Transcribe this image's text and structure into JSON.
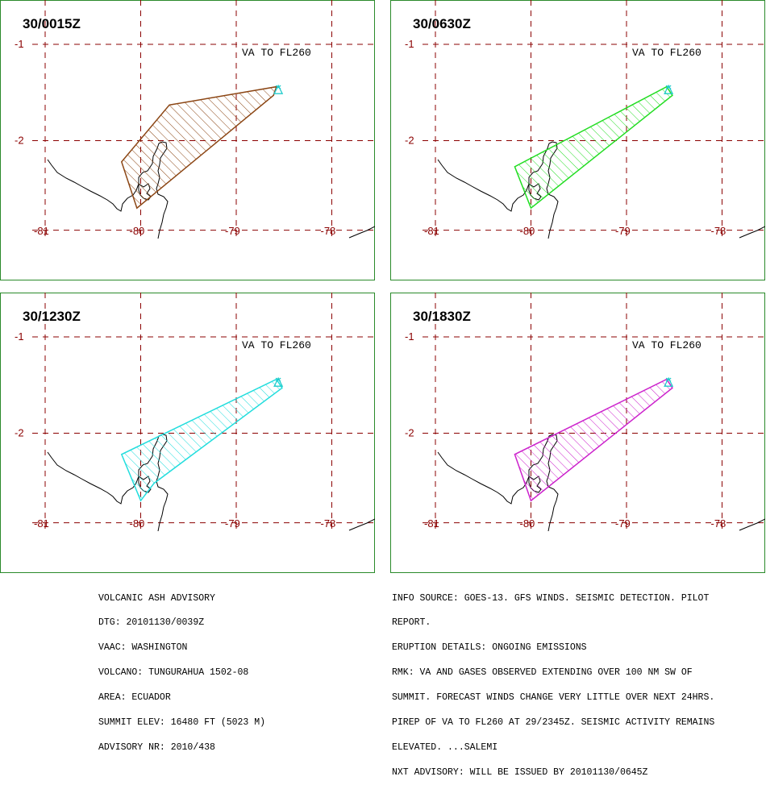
{
  "panels": [
    {
      "time": "30/0015Z",
      "label": "VA TO FL260",
      "color": "#8B4513",
      "polygon": [
        [
          -79.7,
          -1.63
        ],
        [
          -78.58,
          -1.44
        ],
        [
          -78.61,
          -1.53
        ],
        [
          -80.04,
          -2.7
        ],
        [
          -80.2,
          -2.22
        ]
      ]
    },
    {
      "time": "30/0630Z",
      "label": "VA TO FL260",
      "color": "#22dd22",
      "polygon": [
        [
          -78.58,
          -1.44
        ],
        [
          -78.52,
          -1.53
        ],
        [
          -80.0,
          -2.7
        ],
        [
          -80.17,
          -2.27
        ]
      ]
    },
    {
      "time": "30/1230Z",
      "label": "VA TO FL260",
      "color": "#22dddd",
      "polygon": [
        [
          -78.58,
          -1.44
        ],
        [
          -78.52,
          -1.53
        ],
        [
          -79.86,
          -2.52
        ],
        [
          -80.0,
          -2.7
        ],
        [
          -80.2,
          -2.22
        ]
      ]
    },
    {
      "time": "30/1830Z",
      "label": "VA TO FL260",
      "color": "#cc22cc",
      "polygon": [
        [
          -78.58,
          -1.44
        ],
        [
          -78.52,
          -1.53
        ],
        [
          -80.0,
          -2.7
        ],
        [
          -80.17,
          -2.22
        ]
      ]
    }
  ],
  "axes": {
    "lon_ticks": [
      "-81",
      "-80",
      "-79",
      "-78"
    ],
    "lat_ticks": [
      "-1",
      "-2"
    ],
    "grid_color": "#8b0000"
  },
  "advisory_left": [
    "VOLCANIC ASH ADVISORY",
    "DTG: 20101130/0039Z",
    "VAAC: WASHINGTON",
    "VOLCANO: TUNGURAHUA 1502-08",
    "AREA: ECUADOR",
    "SUMMIT ELEV: 16480 FT (5023 M)",
    "ADVISORY NR: 2010/438"
  ],
  "advisory_right": [
    "INFO SOURCE: GOES-13. GFS WINDS. SEISMIC DETECTION. PILOT",
    "REPORT.",
    "ERUPTION DETAILS: ONGOING EMISSIONS",
    "RMK: VA AND GASES OBSERVED EXTENDING OVER 100 NM SW OF",
    "SUMMIT. FORECAST WINDS CHANGE VERY LITTLE OVER NEXT 24HRS.",
    "PIREP OF VA TO FL260 AT 29/2345Z. SEISMIC ACTIVITY REMAINS",
    "ELEVATED. ...SALEMI",
    "NXT ADVISORY: WILL BE ISSUED BY 20101130/0645Z"
  ]
}
